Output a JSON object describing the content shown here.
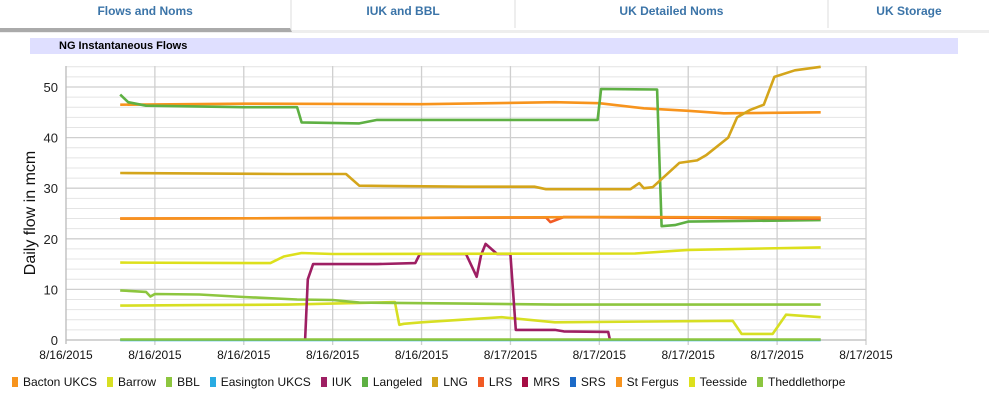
{
  "tabs": [
    {
      "label": "Flows and Noms",
      "active": true
    },
    {
      "label": "IUK and BBL"
    },
    {
      "label": "UK Detailed Noms"
    },
    {
      "label": "UK Storage"
    }
  ],
  "panel_title": "NG Instantaneous Flows",
  "chart_data": {
    "type": "line",
    "title": "NG Instantaneous Flows",
    "ylabel": "Daily flow in mcm",
    "xlabel": "",
    "ylim": [
      0,
      54
    ],
    "yticks": [
      0,
      10,
      20,
      30,
      40,
      50
    ],
    "xlim": [
      0,
      9
    ],
    "xtick_labels": [
      "8/16/2015",
      "8/16/2015",
      "8/16/2015",
      "8/16/2015",
      "8/16/2015",
      "8/17/2015",
      "8/17/2015",
      "8/17/2015",
      "8/17/2015",
      "8/17/2015"
    ],
    "grid": true,
    "legend_position": "bottom",
    "series": [
      {
        "name": "Bacton UKCS",
        "color": "#f7941d",
        "points": [
          [
            0.61,
            46.5
          ],
          [
            2,
            46.7
          ],
          [
            4,
            46.6
          ],
          [
            5.5,
            47
          ],
          [
            6.0,
            46.8
          ],
          [
            6.5,
            45.8
          ],
          [
            7,
            45.3
          ],
          [
            7.4,
            44.8
          ],
          [
            8.49,
            45
          ]
        ]
      },
      {
        "name": "Barrow",
        "color": "#d7df23",
        "points": [
          [
            0.61,
            6.8
          ],
          [
            1.5,
            6.9
          ],
          [
            2.5,
            7
          ],
          [
            3.7,
            7.5
          ],
          [
            3.75,
            3
          ],
          [
            3.8,
            3.2
          ],
          [
            4.0,
            3.5
          ],
          [
            4.9,
            4.5
          ],
          [
            5.5,
            3.5
          ],
          [
            7.5,
            3.8
          ],
          [
            7.6,
            1.2
          ],
          [
            7.95,
            1.2
          ],
          [
            8.1,
            5
          ],
          [
            8.49,
            4.5
          ]
        ]
      },
      {
        "name": "BBL",
        "color": "#8dc63f",
        "points": [
          [
            0.61,
            9.8
          ],
          [
            0.9,
            9.5
          ],
          [
            0.95,
            8.6
          ],
          [
            1.0,
            9.1
          ],
          [
            1.5,
            9
          ],
          [
            2,
            8.5
          ],
          [
            2.6,
            8
          ],
          [
            3.0,
            7.9
          ],
          [
            3.3,
            7.4
          ],
          [
            4.5,
            7.2
          ],
          [
            5.5,
            7
          ],
          [
            8.49,
            7
          ]
        ]
      },
      {
        "name": "Easington UKCS",
        "color": "#29abe2",
        "points": [
          [
            0.61,
            0
          ],
          [
            8.49,
            0
          ]
        ]
      },
      {
        "name": "IUK",
        "color": "#9e1f63",
        "points": [
          [
            2.69,
            0
          ],
          [
            2.72,
            12
          ],
          [
            2.78,
            15
          ],
          [
            3.5,
            15
          ],
          [
            3.93,
            15.2
          ],
          [
            3.98,
            17
          ],
          [
            4.5,
            17
          ],
          [
            4.62,
            12.5
          ],
          [
            4.67,
            16.8
          ],
          [
            4.72,
            19
          ],
          [
            4.85,
            17
          ],
          [
            5.0,
            17
          ],
          [
            5.06,
            2
          ],
          [
            5.5,
            2
          ],
          [
            5.6,
            1.7
          ],
          [
            6.1,
            1.6
          ],
          [
            6.12,
            0
          ]
        ]
      },
      {
        "name": "Langeled",
        "color": "#5eb043",
        "points": [
          [
            0.61,
            48.5
          ],
          [
            0.7,
            47
          ],
          [
            0.9,
            46.3
          ],
          [
            2,
            46
          ],
          [
            2.6,
            46
          ],
          [
            2.65,
            43
          ],
          [
            3.3,
            42.8
          ],
          [
            3.5,
            43.5
          ],
          [
            5,
            43.5
          ],
          [
            5.98,
            43.5
          ],
          [
            6.02,
            49.6
          ],
          [
            6.65,
            49.5
          ],
          [
            6.7,
            22.5
          ],
          [
            6.85,
            22.7
          ],
          [
            7,
            23.4
          ],
          [
            8.49,
            23.7
          ]
        ]
      },
      {
        "name": "LNG",
        "color": "#d4a51b",
        "points": [
          [
            0.61,
            33
          ],
          [
            2.5,
            32.8
          ],
          [
            3.15,
            32.8
          ],
          [
            3.3,
            30.5
          ],
          [
            4.5,
            30.3
          ],
          [
            5.27,
            30.3
          ],
          [
            5.4,
            29.8
          ],
          [
            6.35,
            29.8
          ],
          [
            6.45,
            31
          ],
          [
            6.5,
            30
          ],
          [
            6.6,
            30.2
          ],
          [
            6.9,
            35
          ],
          [
            7.1,
            35.5
          ],
          [
            7.2,
            36.5
          ],
          [
            7.45,
            40
          ],
          [
            7.55,
            44
          ],
          [
            7.7,
            45.5
          ],
          [
            7.85,
            46.5
          ],
          [
            7.97,
            52
          ],
          [
            8.2,
            53.3
          ],
          [
            8.49,
            54
          ]
        ]
      },
      {
        "name": "LRS",
        "color": "#f15a24",
        "points": [
          [
            0.61,
            24
          ],
          [
            5.4,
            24.2
          ],
          [
            5.45,
            23.3
          ],
          [
            5.6,
            24.3
          ],
          [
            8.49,
            24
          ]
        ]
      },
      {
        "name": "MRS",
        "color": "#a50d44",
        "points": []
      },
      {
        "name": "SRS",
        "color": "#1c6ac7",
        "points": []
      },
      {
        "name": "St Fergus",
        "color": "#f7931e",
        "points": [
          [
            0.61,
            24
          ],
          [
            3,
            24.1
          ],
          [
            6,
            24.3
          ],
          [
            8.49,
            24.2
          ]
        ]
      },
      {
        "name": "Teesside",
        "color": "#dde01c",
        "points": [
          [
            0.61,
            15.3
          ],
          [
            2.3,
            15.2
          ],
          [
            2.45,
            16.5
          ],
          [
            2.65,
            17.2
          ],
          [
            3,
            17
          ],
          [
            6.4,
            17.1
          ],
          [
            7,
            17.8
          ],
          [
            8.49,
            18.3
          ]
        ]
      },
      {
        "name": "Theddlethorpe",
        "color": "#8cc63f",
        "points": [
          [
            0.61,
            0.1
          ],
          [
            8.49,
            0.1
          ]
        ]
      }
    ]
  }
}
